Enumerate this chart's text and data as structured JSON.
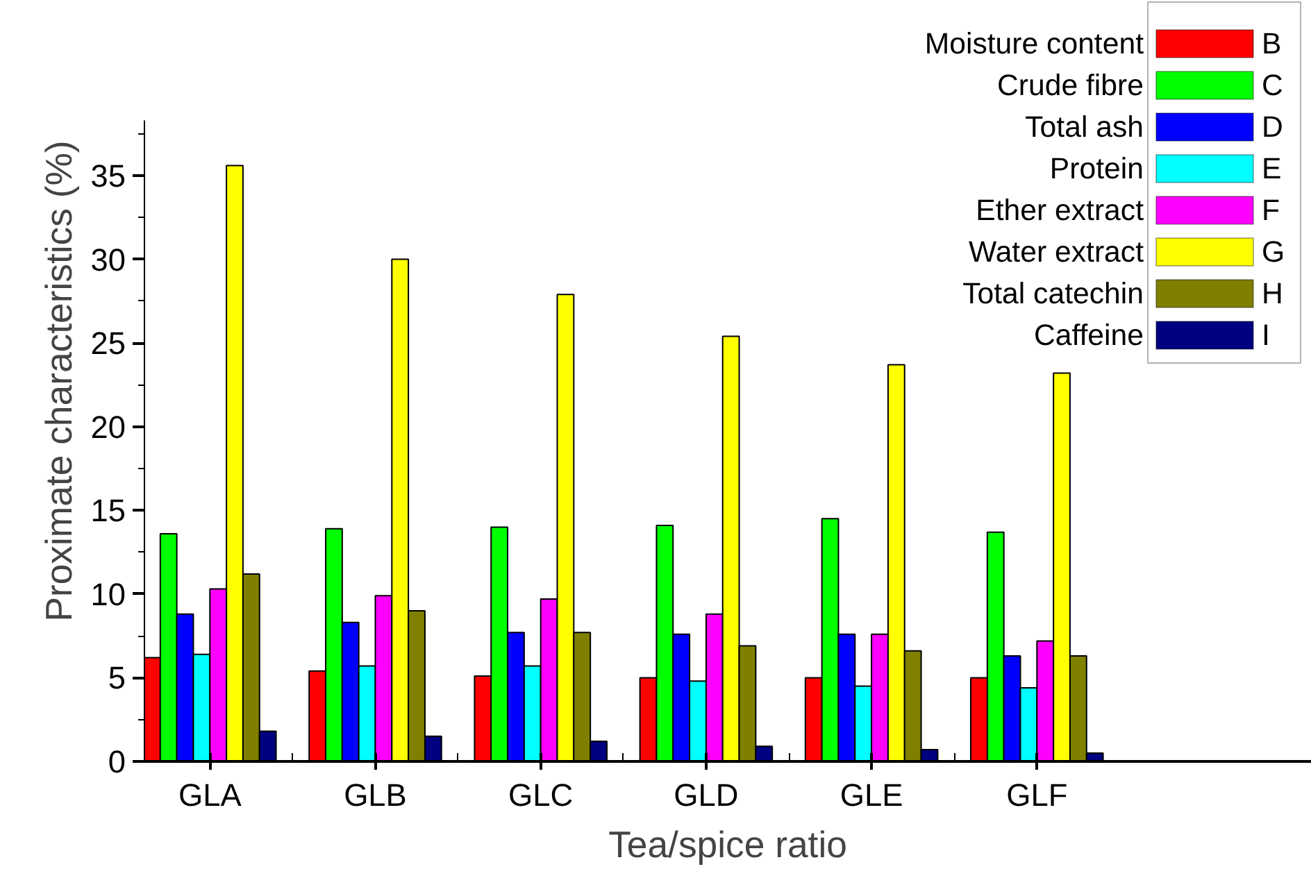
{
  "chart_data": {
    "type": "bar",
    "xlabel": "Tea/spice ratio",
    "ylabel": "Proximate characteristics (%)",
    "categories": [
      "GLA",
      "GLB",
      "GLC",
      "GLD",
      "GLE",
      "GLF"
    ],
    "ylim": [
      0,
      38.3
    ],
    "yticks": [
      0,
      5,
      10,
      15,
      20,
      25,
      30,
      35
    ],
    "grid": false,
    "legend": "top right",
    "series": [
      {
        "name": "Moisture content",
        "color": "#ff0000",
        "values": [
          6.2,
          5.4,
          5.1,
          5.0,
          5.0,
          5.0
        ]
      },
      {
        "name": "Crude fibre",
        "color": "#00ff00",
        "values": [
          13.6,
          13.9,
          14.0,
          14.1,
          14.5,
          13.7
        ]
      },
      {
        "name": "Total ash",
        "color": "#0000ff",
        "values": [
          8.8,
          8.3,
          7.7,
          7.6,
          7.6,
          6.3
        ]
      },
      {
        "name": "Protein",
        "color": "#00ffff",
        "values": [
          6.4,
          5.7,
          5.7,
          4.8,
          4.5,
          4.4
        ]
      },
      {
        "name": "Ether extract",
        "color": "#ff00ff",
        "values": [
          10.3,
          9.9,
          9.7,
          8.8,
          7.6,
          7.2
        ]
      },
      {
        "name": "Water extract",
        "color": "#ffff00",
        "values": [
          35.6,
          30.0,
          27.9,
          25.4,
          23.7,
          23.2
        ]
      },
      {
        "name": "Total catechin",
        "color": "#808000",
        "values": [
          11.2,
          9.0,
          7.7,
          6.9,
          6.6,
          6.3
        ]
      },
      {
        "name": "Caffeine",
        "color": "#000080",
        "values": [
          1.8,
          1.5,
          1.2,
          0.9,
          0.7,
          0.5
        ]
      }
    ],
    "annotations": [
      "B",
      "C",
      "D",
      "E",
      "F",
      "G",
      "H",
      "I"
    ]
  }
}
